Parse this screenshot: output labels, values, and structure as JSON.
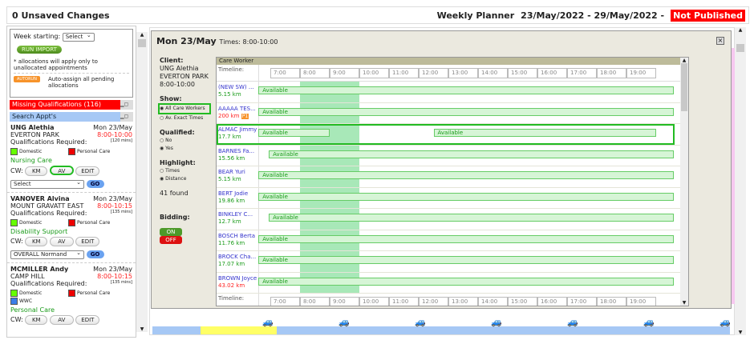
{
  "header": {
    "unsaved": "0 Unsaved Changes",
    "planner_label": "Weekly Planner",
    "date_range": "23/May/2022 - 29/May/2022 -",
    "status": "Not Published"
  },
  "left": {
    "week_label": "Week starting:",
    "week_select": "Select",
    "run_import": "RUN IMPORT",
    "note": "* allocations will apply only to unallocated appointments",
    "autorun": "AUTORUN",
    "autorun_text": "Auto-assign all pending allocations",
    "missing": "Missing Qualifications (116)",
    "search": "Search Appt's",
    "appointments": [
      {
        "name": "UNG Alethia",
        "date": "Mon 23/May",
        "suburb": "EVERTON PARK",
        "time": "8:00-10:00",
        "duration": "[120 mins]",
        "quals": [
          {
            "label": "Domestic",
            "color": "#66ff00"
          },
          {
            "label": "Personal Care",
            "color": "#ee0000"
          }
        ],
        "service": "Nursing Care",
        "select": "Select"
      },
      {
        "name": "VANOVER Alvina",
        "date": "Mon 23/May",
        "suburb": "MOUNT GRAVATT EAST",
        "time": "8:00-10:15",
        "duration": "[135 mins]",
        "quals": [
          {
            "label": "Domestic",
            "color": "#66ff00"
          },
          {
            "label": "Personal Care",
            "color": "#ee0000"
          }
        ],
        "service": "Disability Support",
        "select": "OVERALL Normand"
      },
      {
        "name": "MCMILLER Andy",
        "date": "Mon 23/May",
        "suburb": "CAMP HILL",
        "time": "8:00-10:15",
        "duration": "[135 mins]",
        "quals": [
          {
            "label": "Domestic",
            "color": "#66ff00"
          },
          {
            "label": "Personal Care",
            "color": "#ee0000"
          },
          {
            "label": "WWC",
            "color": "#3a7ee8"
          }
        ],
        "service": "Personal Care",
        "select": ""
      }
    ],
    "qual_label": "Qualifications Required:",
    "cw_label": "CW:",
    "km": "KM",
    "av": "AV",
    "edit": "EDIT",
    "go": "GO"
  },
  "modal": {
    "title": "Mon 23/May",
    "times": "Times: 8:00-10:00",
    "client_label": "Client:",
    "client_name": "UNG Alethia",
    "client_suburb": "EVERTON PARK",
    "client_time": "8:00-10:00",
    "show_label": "Show:",
    "show_all": "All Care Workers",
    "show_exact": "Av. Exact Times",
    "qualified_label": "Qualified:",
    "no": "No",
    "yes": "Yes",
    "highlight_label": "Highlight:",
    "times_opt": "Times",
    "distance_opt": "Distance",
    "found": "41 found",
    "bidding_label": "Bidding:",
    "on": "ON",
    "off": "OFF",
    "grid_header": "Care Worker",
    "timeline_label": "Timeline:",
    "hours": [
      "7:00",
      "8:00",
      "9:00",
      "10:00",
      "11:00",
      "12:00",
      "13:00",
      "14:00",
      "15:00",
      "16:00",
      "17:00",
      "18:00",
      "19:00"
    ],
    "appointment_window": [
      8,
      10
    ],
    "workers": [
      {
        "name": "(NEW SW) ...",
        "dist": "5.15 km",
        "far": false,
        "avail": [
          [
            6.6,
            20.6
          ]
        ]
      },
      {
        "name": "AAAAA TES...",
        "dist": "200 km",
        "far": true,
        "badge": "P1",
        "avail": [
          [
            6.6,
            20.6
          ]
        ]
      },
      {
        "name": "ALMAC Jimmy",
        "dist": "17.7 km",
        "far": false,
        "selected": true,
        "avail": [
          [
            6.6,
            9
          ],
          [
            12.5,
            20
          ]
        ]
      },
      {
        "name": "BARNES Fa...",
        "dist": "15.56 km",
        "far": false,
        "avail": [
          [
            6.95,
            20.6
          ]
        ]
      },
      {
        "name": "BEAR Yuri",
        "dist": "5.15 km",
        "far": false,
        "avail": [
          [
            6.6,
            20.6
          ]
        ]
      },
      {
        "name": "BERT Jodie",
        "dist": "19.86 km",
        "far": false,
        "avail": [
          [
            6.6,
            20.6
          ]
        ]
      },
      {
        "name": "BINKLEY C...",
        "dist": "12.7 km",
        "far": false,
        "avail": [
          [
            6.95,
            20.6
          ]
        ]
      },
      {
        "name": "BOSCH Berta",
        "dist": "11.76 km",
        "far": false,
        "avail": [
          [
            6.6,
            20.6
          ]
        ]
      },
      {
        "name": "BROCK Cha...",
        "dist": "17.07 km",
        "far": false,
        "avail": [
          [
            6.6,
            20.6
          ]
        ]
      },
      {
        "name": "BROWN Joyce",
        "dist": "43.02 km",
        "far": true,
        "avail": [
          [
            6.6,
            20.6
          ]
        ]
      }
    ],
    "available": "Available"
  }
}
